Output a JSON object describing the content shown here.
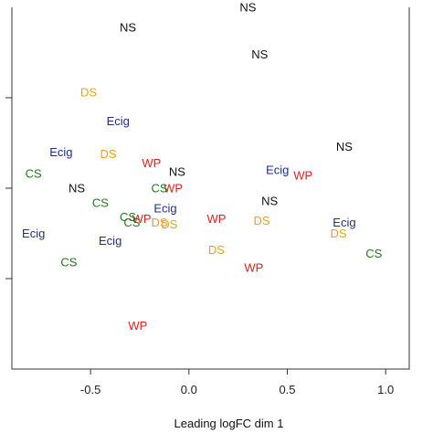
{
  "chart_data": {
    "type": "scatter",
    "title": "",
    "xlabel": "Leading logFC dim 1",
    "ylabel": "",
    "xlim": [
      -0.9,
      1.12
    ],
    "ylim": [
      -1.0,
      1.0
    ],
    "x_ticks": [
      -0.5,
      0.0,
      0.5,
      1.0
    ],
    "x_tick_labels": [
      "-0.5",
      "0.0",
      "0.5",
      "1.0"
    ],
    "y_ticks": [
      -0.5,
      0.0,
      0.5
    ],
    "y_tick_labels": [
      "",
      "",
      ""
    ],
    "grid": false,
    "legend": "none",
    "group_colors": {
      "NS": "#111111",
      "DS": "#e8a317",
      "Ecig": "#1f2f8a",
      "WP": "#e0201b",
      "CS": "#1e7a1e"
    },
    "points": [
      {
        "label": "NS",
        "x": 0.3,
        "y": 1.0
      },
      {
        "label": "NS",
        "x": -0.31,
        "y": 0.89
      },
      {
        "label": "NS",
        "x": 0.36,
        "y": 0.74
      },
      {
        "label": "NS",
        "x": 0.79,
        "y": 0.23
      },
      {
        "label": "NS",
        "x": -0.06,
        "y": 0.09
      },
      {
        "label": "NS",
        "x": -0.57,
        "y": 0.0
      },
      {
        "label": "NS",
        "x": 0.41,
        "y": -0.07
      },
      {
        "label": "DS",
        "x": -0.51,
        "y": 0.53
      },
      {
        "label": "DS",
        "x": -0.41,
        "y": 0.19
      },
      {
        "label": "DS",
        "x": -0.15,
        "y": -0.19
      },
      {
        "label": "DS",
        "x": -0.1,
        "y": -0.2
      },
      {
        "label": "DS",
        "x": 0.37,
        "y": -0.18
      },
      {
        "label": "DS",
        "x": 0.76,
        "y": -0.25
      },
      {
        "label": "DS",
        "x": 0.14,
        "y": -0.34
      },
      {
        "label": "Ecig",
        "x": -0.36,
        "y": 0.37
      },
      {
        "label": "Ecig",
        "x": -0.65,
        "y": 0.2
      },
      {
        "label": "Ecig",
        "x": 0.45,
        "y": 0.1
      },
      {
        "label": "Ecig",
        "x": -0.12,
        "y": -0.11
      },
      {
        "label": "Ecig",
        "x": 0.79,
        "y": -0.19
      },
      {
        "label": "Ecig",
        "x": -0.79,
        "y": -0.25
      },
      {
        "label": "Ecig",
        "x": -0.4,
        "y": -0.29
      },
      {
        "label": "WP",
        "x": -0.19,
        "y": 0.14
      },
      {
        "label": "WP",
        "x": 0.58,
        "y": 0.07
      },
      {
        "label": "WP",
        "x": -0.08,
        "y": 0.0
      },
      {
        "label": "WP",
        "x": -0.24,
        "y": -0.17
      },
      {
        "label": "WP",
        "x": 0.14,
        "y": -0.17
      },
      {
        "label": "WP",
        "x": 0.33,
        "y": -0.44
      },
      {
        "label": "WP",
        "x": -0.26,
        "y": -0.76
      },
      {
        "label": "CS",
        "x": -0.79,
        "y": 0.08
      },
      {
        "label": "CS",
        "x": -0.45,
        "y": -0.08
      },
      {
        "label": "CS",
        "x": -0.15,
        "y": 0.0
      },
      {
        "label": "CS",
        "x": -0.31,
        "y": -0.16
      },
      {
        "label": "CS",
        "x": -0.29,
        "y": -0.19
      },
      {
        "label": "CS",
        "x": -0.61,
        "y": -0.41
      },
      {
        "label": "CS",
        "x": 0.94,
        "y": -0.36
      }
    ]
  }
}
